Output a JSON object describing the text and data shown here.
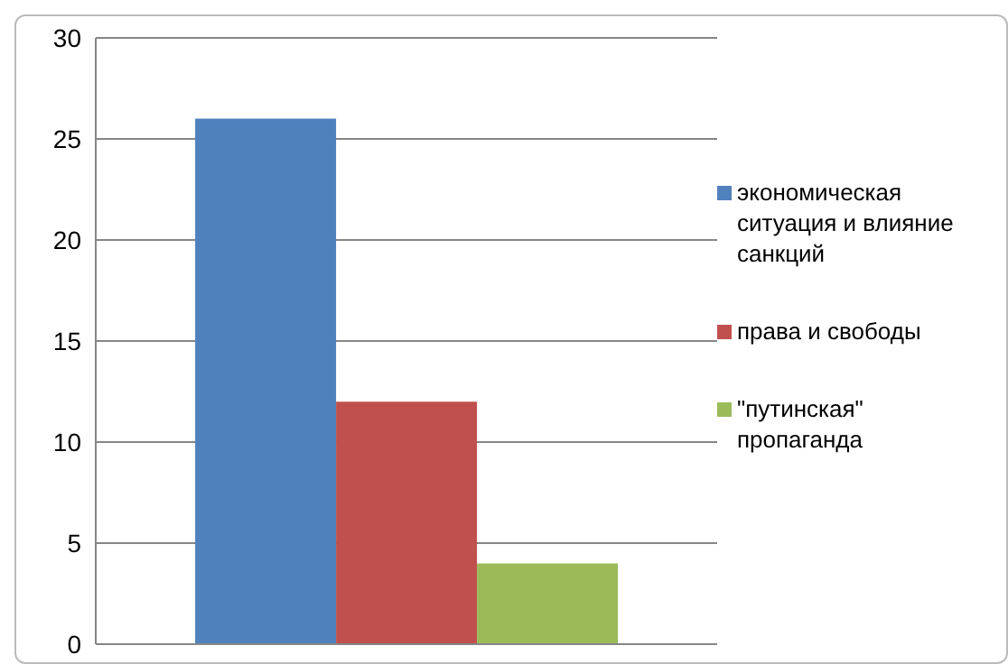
{
  "chart_data": {
    "type": "bar",
    "categories": [
      null
    ],
    "series": [
      {
        "name": "экономическая ситуация и влияние санкций",
        "color": "#4f81bd",
        "values": [
          26
        ]
      },
      {
        "name": "права и свободы",
        "color": "#c0504d",
        "values": [
          12
        ]
      },
      {
        "name": "\"путинская\" пропаганда",
        "color": "#9bbb59",
        "values": [
          4
        ]
      }
    ],
    "ylim": [
      0,
      30
    ],
    "yticks": [
      0,
      5,
      10,
      15,
      20,
      25,
      30
    ],
    "grid": "y",
    "legend": "right"
  }
}
